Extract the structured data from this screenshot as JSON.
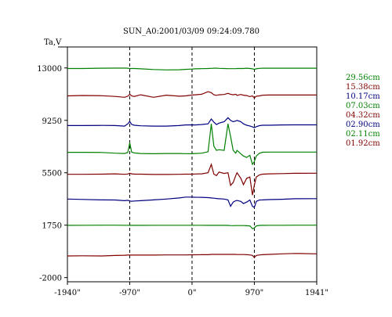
{
  "chart_data": {
    "type": "line",
    "title": "SUN_A0:2001/03/09 09:24:09.780",
    "ylabel": "Ta,V",
    "xlabel": "",
    "xlim": [
      -1940,
      1941
    ],
    "ylim": [
      -2300,
      14500
    ],
    "x_ticks": [
      {
        "value": -1940,
        "label": "-1940\""
      },
      {
        "value": -970,
        "label": "-970\""
      },
      {
        "value": 0,
        "label": "0\""
      },
      {
        "value": 970,
        "label": "970\""
      },
      {
        "value": 1941,
        "label": "1941\""
      }
    ],
    "y_ticks": [
      {
        "value": 13000,
        "label": "13000"
      },
      {
        "value": 9250,
        "label": "9250"
      },
      {
        "value": 5500,
        "label": "5500"
      },
      {
        "value": 1750,
        "label": "1750"
      },
      {
        "value": -2000,
        "label": "-2000"
      }
    ],
    "vlines": [
      -970,
      0,
      970
    ],
    "grid": false,
    "legend_position": "right",
    "x": [
      -1940,
      -1700,
      -1400,
      -1200,
      -1050,
      -1000,
      -970,
      -940,
      -900,
      -800,
      -600,
      -400,
      -200,
      -100,
      0,
      50,
      150,
      250,
      300,
      340,
      380,
      420,
      500,
      560,
      600,
      640,
      680,
      700,
      760,
      800,
      850,
      900,
      940,
      970,
      1000,
      1050,
      1100,
      1200,
      1400,
      1600,
      1941
    ],
    "series": [
      {
        "name": "29.56cm",
        "color": "#008000",
        "values": [
          12960,
          12960,
          12980,
          12990,
          12990,
          12980,
          12950,
          12960,
          12960,
          12940,
          12890,
          12860,
          12870,
          12900,
          12920,
          12940,
          12950,
          12960,
          12970,
          12980,
          12980,
          12970,
          12960,
          12950,
          12950,
          12950,
          12950,
          12960,
          12960,
          12960,
          12980,
          12960,
          12940,
          12900,
          12940,
          12970,
          12980,
          12980,
          12980,
          12980,
          12980
        ]
      },
      {
        "name": "15.38cm",
        "color": "#800000",
        "values": [
          11000,
          11030,
          11010,
          10960,
          10900,
          10980,
          11120,
          11000,
          10960,
          11080,
          10900,
          11050,
          10980,
          11000,
          11060,
          11080,
          11120,
          11300,
          11230,
          11080,
          11040,
          11080,
          11100,
          11180,
          11120,
          11080,
          11120,
          11040,
          11100,
          11050,
          11020,
          10950,
          11000,
          10850,
          10980,
          11000,
          11050,
          11060,
          11060,
          11060,
          11060
        ]
      },
      {
        "name": "10.17cm",
        "color": "#000080",
        "values": [
          8880,
          8880,
          8890,
          8880,
          8840,
          9000,
          9180,
          8960,
          8900,
          8860,
          8840,
          8840,
          8880,
          8920,
          8930,
          8920,
          8950,
          9000,
          9350,
          9120,
          8950,
          9050,
          9150,
          9440,
          9250,
          9150,
          9200,
          9250,
          9150,
          9000,
          8900,
          8850,
          8780,
          8720,
          8800,
          8870,
          8900,
          8900,
          8920,
          8930,
          8930
        ]
      },
      {
        "name": "07.03cm",
        "color": "#008000",
        "values": [
          6960,
          6960,
          6950,
          6900,
          6880,
          6950,
          7640,
          6980,
          6920,
          6880,
          6860,
          6880,
          6880,
          6870,
          6860,
          6880,
          6900,
          7000,
          9000,
          7400,
          7100,
          7150,
          7100,
          9000,
          8100,
          7100,
          6900,
          7100,
          6850,
          6700,
          6600,
          6750,
          6100,
          6300,
          6700,
          6900,
          6970,
          6980,
          6980,
          6980,
          6980
        ]
      },
      {
        "name": "04.32cm",
        "color": "#800000",
        "values": [
          5390,
          5390,
          5400,
          5420,
          5390,
          5410,
          5460,
          5420,
          5400,
          5400,
          5380,
          5380,
          5390,
          5400,
          5400,
          5410,
          5420,
          5500,
          6100,
          5400,
          5300,
          5550,
          5450,
          5500,
          4600,
          4800,
          5300,
          5500,
          5100,
          4650,
          5100,
          5200,
          3900,
          4600,
          5200,
          5350,
          5400,
          5420,
          5440,
          5460,
          5470
        ]
      },
      {
        "name": "02.90cm",
        "color": "#000080",
        "values": [
          3620,
          3590,
          3560,
          3550,
          3500,
          3530,
          3480,
          3460,
          3480,
          3500,
          3560,
          3620,
          3700,
          3760,
          3760,
          3750,
          3740,
          3720,
          3700,
          3680,
          3660,
          3640,
          3620,
          3560,
          3100,
          3400,
          3500,
          3520,
          3450,
          3300,
          3400,
          3550,
          3100,
          3020,
          3450,
          3550,
          3560,
          3580,
          3600,
          3640,
          3650
        ]
      },
      {
        "name": "02.11cm",
        "color": "#008000",
        "values": [
          1740,
          1745,
          1750,
          1750,
          1745,
          1745,
          1740,
          1740,
          1745,
          1740,
          1745,
          1745,
          1745,
          1745,
          1745,
          1745,
          1745,
          1740,
          1740,
          1740,
          1740,
          1740,
          1735,
          1730,
          1720,
          1715,
          1720,
          1720,
          1720,
          1720,
          1710,
          1700,
          1500,
          1550,
          1700,
          1730,
          1740,
          1745,
          1745,
          1750,
          1750
        ]
      },
      {
        "name": "01.92cm",
        "color": "#800000",
        "values": [
          -450,
          -440,
          -450,
          -420,
          -400,
          -390,
          -390,
          -390,
          -390,
          -390,
          -390,
          -380,
          -380,
          -380,
          -370,
          -370,
          -360,
          -360,
          -340,
          -340,
          -340,
          -340,
          -340,
          -340,
          -340,
          -340,
          -340,
          -350,
          -350,
          -350,
          -360,
          -380,
          -410,
          -560,
          -420,
          -380,
          -360,
          -340,
          -300,
          -270,
          -300
        ]
      }
    ]
  }
}
